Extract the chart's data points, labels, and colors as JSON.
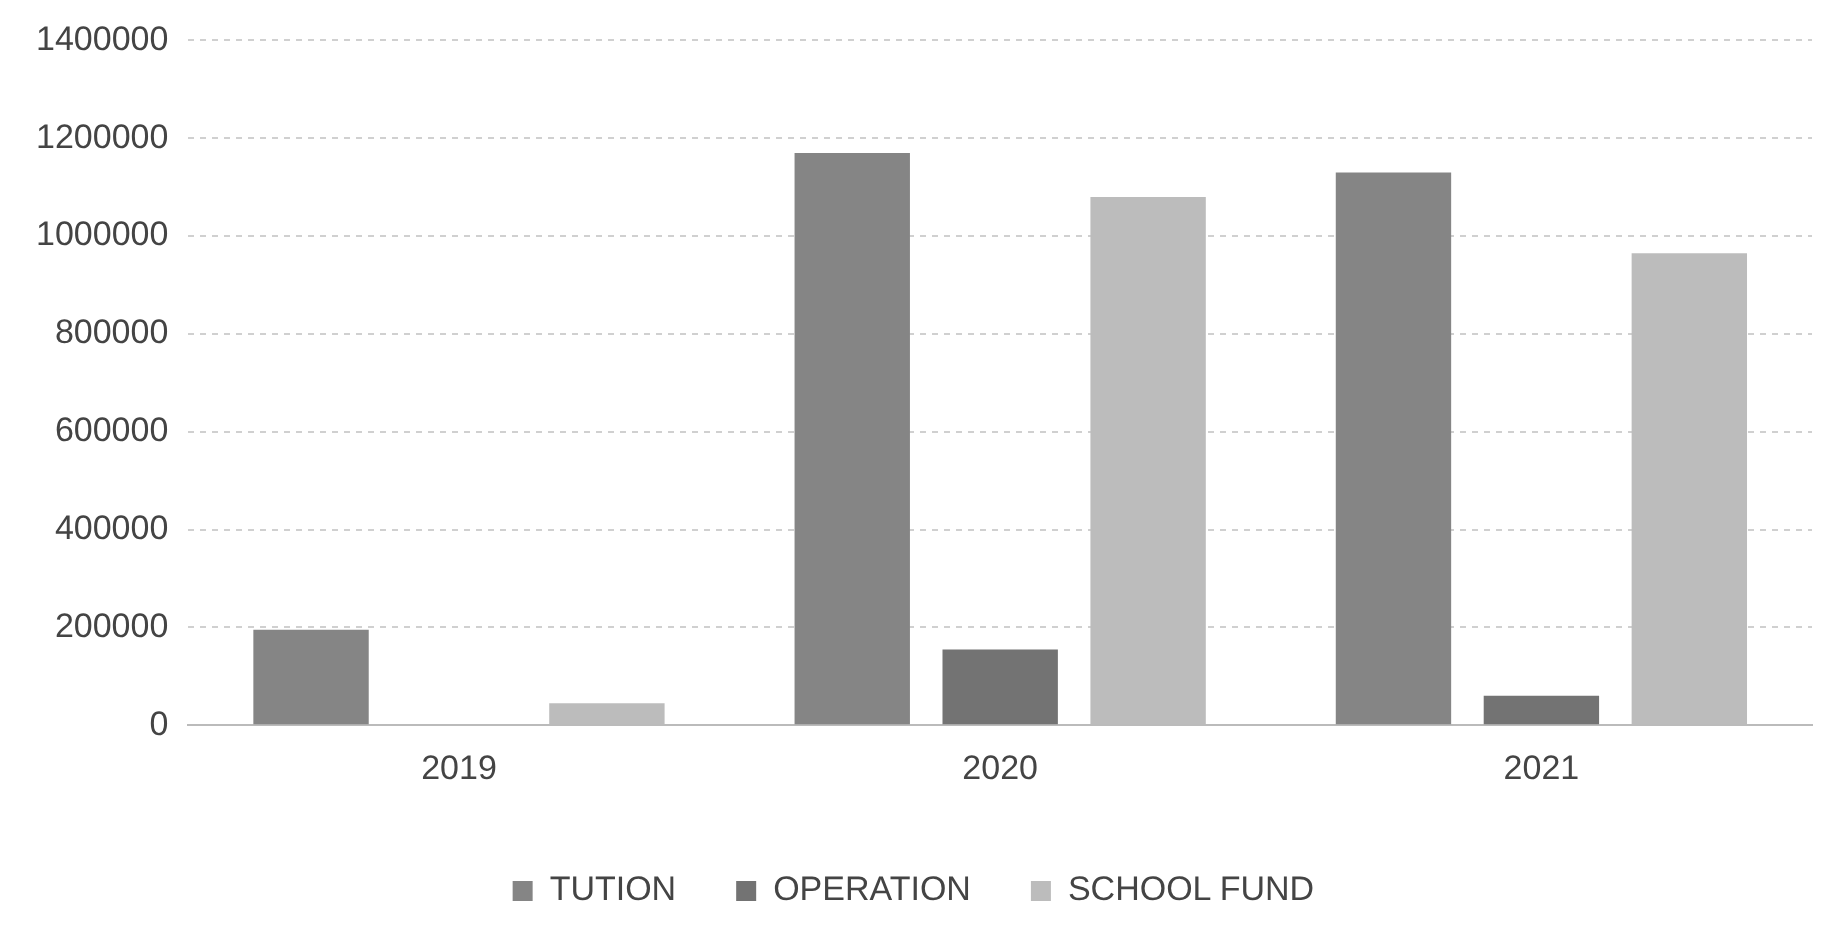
{
  "chart_data": {
    "type": "bar",
    "categories": [
      "2019",
      "2020",
      "2021"
    ],
    "series": [
      {
        "name": "TUTION",
        "color": "#858585",
        "values": [
          195000,
          1170000,
          1130000
        ]
      },
      {
        "name": "OPERATION",
        "color": "#737373",
        "values": [
          null,
          155000,
          60000
        ]
      },
      {
        "name": "SCHOOL FUND",
        "color": "#bcbcbc",
        "values": [
          45000,
          1080000,
          965000
        ]
      }
    ],
    "ylim": [
      0,
      1400000
    ],
    "yticks": [
      0,
      200000,
      400000,
      600000,
      800000,
      1000000,
      1200000,
      1400000
    ],
    "grid": "y",
    "legend": "bottom"
  }
}
